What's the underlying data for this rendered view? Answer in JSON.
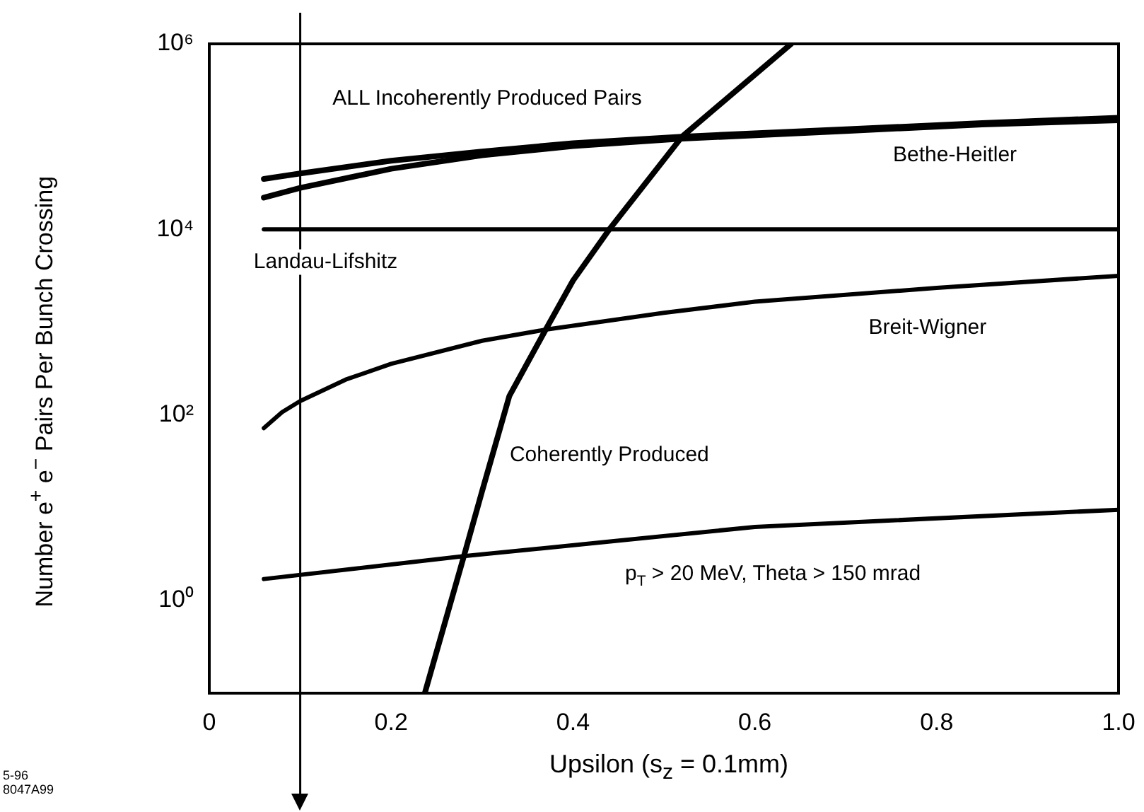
{
  "chart_data": {
    "type": "line",
    "xlabel": "Upsilon    (s$_{z}$ = 0.1mm)",
    "ylabel": "Number e$^{+}$ e$^{−}$ Pairs Per Bunch Crossing",
    "log": "y",
    "grid": false,
    "legend": false,
    "marker": "none",
    "line_style": "solid",
    "xlim": [
      0,
      1
    ],
    "xticks": [
      0,
      0.2,
      0.4,
      0.6,
      0.8,
      {
        "value": 1,
        "label": "1.0"
      }
    ],
    "ylim": [
      0.1,
      1000000
    ],
    "yticks": [
      {
        "value": 1,
        "label": "10⁰"
      },
      {
        "value": 100,
        "label": "10²"
      },
      {
        "value": 10000,
        "label": "10⁴"
      },
      {
        "value": 1000000,
        "label": "10⁶"
      }
    ],
    "series": [
      {
        "name": "ALL Incoherently Produced Pairs",
        "color": "#000000",
        "x": [
          0.06,
          0.1,
          0.2,
          0.3,
          0.4,
          0.52,
          0.7,
          0.85,
          1.0
        ],
        "values": [
          35000,
          40000,
          55000,
          69000,
          85000,
          100000,
          120000,
          140000,
          160000
        ]
      },
      {
        "name": "Bethe-Heitler",
        "color": "#000000",
        "x": [
          0.06,
          0.1,
          0.2,
          0.3,
          0.4,
          0.52,
          0.7,
          0.85,
          1.0
        ],
        "values": [
          22000,
          28000,
          45000,
          63000,
          79000,
          95000,
          115000,
          135000,
          150000
        ]
      },
      {
        "name": "Landau-Lifshitz",
        "color": "#000000",
        "x": [
          0.06,
          1.0
        ],
        "values": [
          10000,
          10000
        ]
      },
      {
        "name": "Breit-Wigner",
        "color": "#000000",
        "x": [
          0.06,
          0.08,
          0.1,
          0.15,
          0.2,
          0.3,
          0.37,
          0.5,
          0.6,
          0.8,
          1.0
        ],
        "values": [
          72,
          107,
          141,
          240,
          355,
          630,
          830,
          1260,
          1660,
          2340,
          3160
        ]
      },
      {
        "name": "Coherently Produced",
        "color": "#000000",
        "x": [
          0.237,
          0.25,
          0.28,
          0.3,
          0.33,
          0.37,
          0.4,
          0.44,
          0.52,
          0.64
        ],
        "values": [
          0.1,
          0.28,
          3,
          15,
          160,
          830,
          2800,
          10000,
          100000,
          1000000
        ]
      },
      {
        "name": "p$_{T}$ > 20 MeV, Theta > 150 mrad",
        "color": "#000000",
        "x": [
          0.06,
          0.28,
          0.6,
          1.0
        ],
        "values": [
          1.7,
          3,
          6.2,
          9.5
        ]
      }
    ],
    "ref_lines": [
      {
        "axis": "x",
        "value": 0.1
      }
    ],
    "annotations": [
      "5-96",
      "8047A99"
    ]
  }
}
